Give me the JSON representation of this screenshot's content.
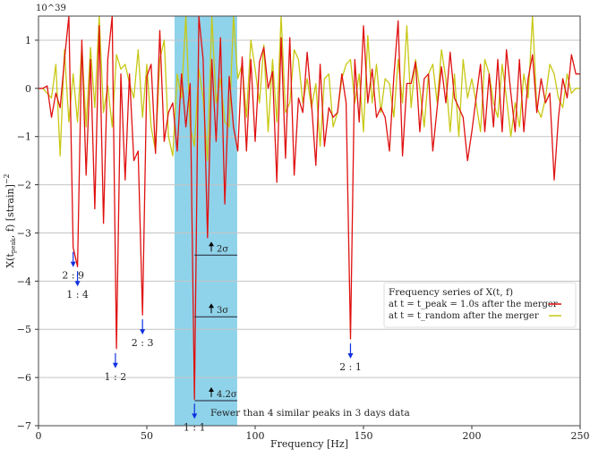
{
  "chart_data": {
    "type": "line",
    "xlabel": "Frequency  [Hz]",
    "ylabel": "X(t_peak, f)  [strain]^-2",
    "y_multiplier": "10^39",
    "xlim": [
      0,
      250
    ],
    "ylim": [
      -7,
      1.5
    ],
    "xticks": [
      0,
      50,
      100,
      150,
      200,
      250
    ],
    "yticks": [
      1,
      0,
      -1,
      -2,
      -3,
      -4,
      -5,
      -6,
      -7
    ],
    "grid": "horizontal",
    "legend_placement": "right",
    "legend_title": "Frequency series of X(t, f)",
    "shaded_band": {
      "x": [
        62.8,
        91.7
      ],
      "color": "#8fd3ea"
    },
    "x": [
      0,
      2,
      4,
      6,
      8,
      10,
      12,
      14,
      16,
      18,
      20,
      22,
      24,
      26,
      28,
      30,
      32,
      34,
      36,
      38,
      40,
      42,
      44,
      46,
      48,
      50,
      52,
      54,
      56,
      58,
      60,
      62,
      64,
      66,
      68,
      70,
      72,
      74,
      76,
      78,
      80,
      82,
      84,
      86,
      88,
      90,
      92,
      94,
      96,
      98,
      100,
      102,
      104,
      106,
      108,
      110,
      112,
      114,
      116,
      118,
      120,
      122,
      124,
      126,
      128,
      130,
      132,
      134,
      136,
      138,
      140,
      142,
      144,
      146,
      148,
      150,
      152,
      154,
      156,
      158,
      160,
      162,
      164,
      166,
      168,
      170,
      172,
      174,
      176,
      178,
      180,
      182,
      184,
      186,
      188,
      190,
      192,
      194,
      196,
      198,
      200,
      202,
      204,
      206,
      208,
      210,
      212,
      214,
      216,
      218,
      220,
      222,
      224,
      226,
      228,
      230,
      232,
      234,
      236,
      238,
      240,
      242,
      244,
      246,
      248,
      250
    ],
    "series": [
      {
        "name": "at t = t_peak = 1.0s after the merger",
        "color": "#e01010",
        "values": [
          0,
          0,
          0.05,
          -0.6,
          -0.1,
          -0.4,
          0.6,
          1.5,
          -3.3,
          -3.7,
          1.0,
          -1.8,
          0.6,
          -2.5,
          1.3,
          -2.8,
          0.6,
          1.5,
          -5.4,
          0.3,
          -1.9,
          0.3,
          -1.5,
          -1.3,
          -4.7,
          0.25,
          0.5,
          -1.35,
          1.2,
          -1.1,
          -0.5,
          -0.3,
          -1.3,
          0.3,
          -0.8,
          0.1,
          -6.45,
          1.5,
          0.6,
          -3.1,
          0.6,
          -1.1,
          1.05,
          -2.4,
          0.25,
          -0.8,
          -1.3,
          0.65,
          -1.3,
          0.6,
          -1.1,
          0.55,
          0.85,
          0.0,
          0.35,
          -1.95,
          1.05,
          -1.45,
          1.05,
          -1.8,
          -0.2,
          -0.5,
          0.75,
          -0.3,
          -1.6,
          0.5,
          -1.2,
          -0.4,
          -0.6,
          -0.5,
          0.3,
          -0.3,
          -5.2,
          0.6,
          -0.7,
          1.3,
          -0.3,
          0.4,
          -0.6,
          -0.4,
          -0.6,
          -1.3,
          0.25,
          1.4,
          -1.4,
          0.1,
          0.1,
          0.55,
          -0.9,
          0.2,
          0.3,
          -1.3,
          -0.4,
          0.45,
          -0.3,
          0.75,
          -0.2,
          -0.4,
          -0.6,
          -1.5,
          -0.9,
          -0.2,
          0.5,
          -0.9,
          0.3,
          -0.8,
          0.6,
          -0.9,
          0.8,
          -0.1,
          -0.9,
          0.6,
          -0.9,
          0.2,
          0.7,
          -0.5,
          0.2,
          -0.3,
          -0.1,
          -1.9,
          -0.6,
          0.2,
          -0.2,
          0.7,
          0.3,
          0.3
        ]
      },
      {
        "name": "at t = t_random after the merger",
        "color": "#c8c814",
        "values": [
          0,
          0,
          -0.1,
          -0.2,
          0.5,
          -1.4,
          0.8,
          -0.7,
          0.3,
          -0.7,
          0.9,
          -0.8,
          0.85,
          -0.4,
          1.5,
          -0.5,
          0.05,
          -0.8,
          0.7,
          0.4,
          0.5,
          0.1,
          -0.2,
          0.8,
          -0.6,
          0.5,
          -0.8,
          -1.3,
          0.6,
          1.0,
          -1.0,
          -1.4,
          0.3,
          -0.2,
          1.5,
          -0.8,
          -1.2,
          0.4,
          -0.2,
          -1.5,
          1.5,
          -0.3,
          0.2,
          -0.7,
          -0.8,
          1.5,
          0.2,
          0.5,
          -0.6,
          1.0,
          0.4,
          -0.3,
          0.9,
          -0.9,
          0.6,
          -0.7,
          1.5,
          -0.5,
          -0.3,
          0.8,
          0.6,
          -0.3,
          0.2,
          -0.4,
          0.1,
          -1.2,
          0.2,
          0.3,
          -0.8,
          -0.5,
          0.2,
          0.5,
          0.6,
          -0.3,
          0.3,
          -0.9,
          1.1,
          -0.3,
          0.5,
          -0.5,
          0.2,
          0.1,
          -0.6,
          0.6,
          -0.3,
          1.3,
          -0.4,
          0.6,
          0.0,
          -0.8,
          0.3,
          0.5,
          -0.3,
          0.8,
          0.2,
          -0.9,
          0.3,
          -1.0,
          0.6,
          -0.2,
          0.2,
          -0.3,
          -0.9,
          0.6,
          0.3,
          -0.3,
          -0.6,
          0.5,
          -0.2,
          -1.0,
          -0.3,
          -0.8,
          0.3,
          -0.2,
          1.5,
          -0.4,
          -0.6,
          -0.2,
          0.5,
          0.3,
          -0.2,
          -0.4,
          0.3,
          -0.1,
          0.0,
          0.0
        ]
      }
    ],
    "legend_labels": [
      "at t = t_peak = 1.0s after the merger",
      "at t = t_random after the merger"
    ],
    "peak_annotations": [
      {
        "label": "2 : 9",
        "x": 16,
        "y": -3.3
      },
      {
        "label": "1 : 4",
        "x": 18,
        "y": -3.7
      },
      {
        "label": "1 : 2",
        "x": 35.5,
        "y": -5.4
      },
      {
        "label": "2 : 3",
        "x": 48,
        "y": -4.7
      },
      {
        "label": "1 : 1",
        "x": 72,
        "y": -6.45
      },
      {
        "label": "2 : 1",
        "x": 144,
        "y": -5.2
      }
    ],
    "arrow_color": "#1030e0",
    "sigma_levels": [
      {
        "label": "2σ",
        "y": -3.46
      },
      {
        "label": "3σ",
        "y": -4.74
      },
      {
        "label": "4.2σ",
        "y": -6.48
      }
    ],
    "annotation_text": "Fewer than 4 similar peaks in 3 days data"
  }
}
